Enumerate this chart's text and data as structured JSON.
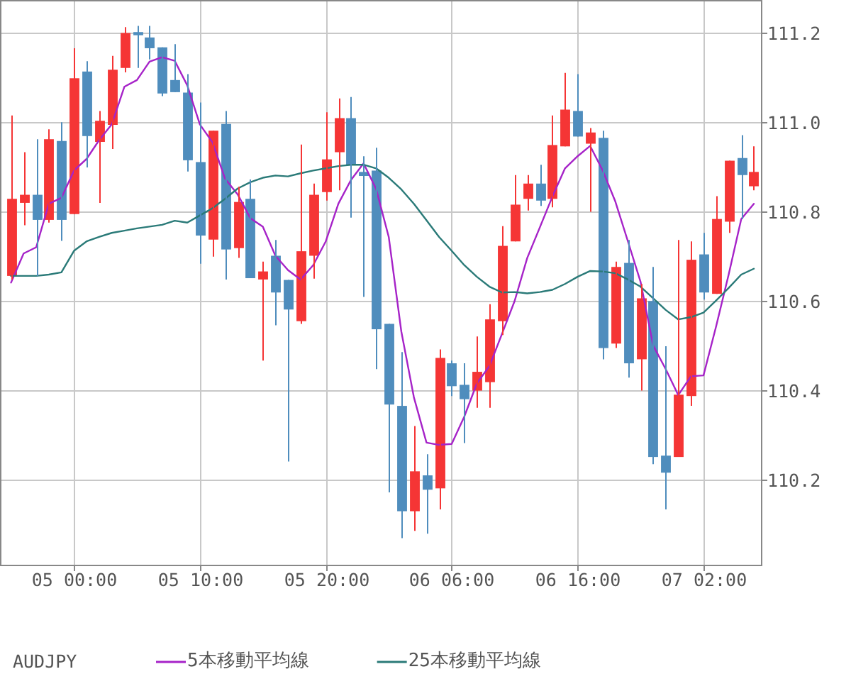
{
  "chart_data": {
    "type": "candlestick",
    "title": "AUDJPY",
    "categories": [
      null,
      null,
      null,
      null,
      null,
      "05 00:00",
      null,
      null,
      null,
      null,
      null,
      null,
      null,
      null,
      null,
      "05 10:00",
      null,
      null,
      null,
      null,
      null,
      null,
      null,
      null,
      null,
      "05 20:00",
      null,
      null,
      null,
      null,
      null,
      null,
      null,
      null,
      null,
      "06 06:00",
      null,
      null,
      null,
      null,
      null,
      null,
      null,
      null,
      null,
      "06 16:00",
      null,
      null,
      null,
      null,
      null,
      null,
      null,
      null,
      null,
      "07 02:00",
      null,
      null,
      null,
      null
    ],
    "ohlc": [
      [
        110.656,
        111.014,
        110.648,
        110.828
      ],
      [
        110.819,
        110.932,
        110.769,
        110.837
      ],
      [
        110.837,
        110.961,
        110.656,
        110.781
      ],
      [
        110.781,
        110.983,
        110.775,
        110.961
      ],
      [
        110.957,
        110.999,
        110.734,
        110.781
      ],
      [
        110.794,
        111.164,
        110.794,
        111.097
      ],
      [
        111.112,
        111.135,
        110.898,
        110.968
      ],
      [
        110.955,
        111.024,
        110.819,
        111.002
      ],
      [
        110.993,
        111.147,
        110.939,
        111.116
      ],
      [
        111.12,
        111.211,
        111.11,
        111.198
      ],
      [
        111.2,
        111.214,
        111.12,
        111.193
      ],
      [
        111.188,
        111.214,
        111.139,
        111.164
      ],
      [
        111.166,
        111.166,
        111.057,
        111.063
      ],
      [
        111.093,
        111.173,
        111.066,
        111.066
      ],
      [
        111.065,
        111.106,
        110.889,
        110.914
      ],
      [
        110.91,
        111.043,
        110.683,
        110.746
      ],
      [
        110.737,
        110.98,
        110.699,
        110.98
      ],
      [
        110.995,
        111.024,
        110.648,
        110.715
      ],
      [
        110.718,
        110.855,
        110.696,
        110.821
      ],
      [
        110.828,
        110.871,
        110.651,
        110.651
      ],
      [
        110.648,
        110.688,
        110.467,
        110.666
      ],
      [
        110.701,
        110.736,
        110.546,
        110.619
      ],
      [
        110.647,
        110.647,
        110.242,
        110.581
      ],
      [
        110.555,
        110.949,
        110.549,
        110.711
      ],
      [
        110.701,
        110.862,
        110.65,
        110.837
      ],
      [
        110.843,
        111.021,
        110.824,
        110.916
      ],
      [
        110.932,
        111.052,
        110.847,
        111.008
      ],
      [
        111.008,
        111.055,
        110.786,
        110.904
      ],
      [
        110.888,
        110.923,
        110.609,
        110.879
      ],
      [
        110.891,
        110.942,
        110.448,
        110.537
      ],
      [
        110.549,
        110.549,
        110.173,
        110.369
      ],
      [
        110.366,
        110.486,
        110.071,
        110.131
      ],
      [
        110.131,
        110.321,
        110.087,
        110.22
      ],
      [
        110.211,
        110.258,
        110.081,
        110.179
      ],
      [
        110.182,
        110.492,
        110.135,
        110.473
      ],
      [
        110.461,
        110.467,
        110.388,
        110.41
      ],
      [
        110.413,
        110.461,
        110.283,
        110.381
      ],
      [
        110.4,
        110.521,
        110.362,
        110.442
      ],
      [
        110.419,
        110.593,
        110.362,
        110.559
      ],
      [
        110.555,
        110.767,
        110.524,
        110.723
      ],
      [
        110.733,
        110.881,
        110.733,
        110.815
      ],
      [
        110.828,
        110.881,
        110.802,
        110.862
      ],
      [
        110.862,
        110.904,
        110.812,
        110.824
      ],
      [
        110.828,
        111.014,
        110.809,
        110.948
      ],
      [
        110.945,
        111.109,
        110.945,
        111.027
      ],
      [
        111.024,
        111.106,
        110.967,
        110.967
      ],
      [
        110.951,
        110.986,
        110.799,
        110.976
      ],
      [
        110.964,
        110.98,
        110.47,
        110.495
      ],
      [
        110.505,
        110.688,
        110.495,
        110.676
      ],
      [
        110.685,
        110.736,
        110.429,
        110.461
      ],
      [
        110.47,
        110.638,
        110.4,
        110.606
      ],
      [
        110.6,
        110.676,
        110.236,
        110.252
      ],
      [
        110.255,
        110.499,
        110.135,
        110.217
      ],
      [
        110.252,
        110.736,
        110.252,
        110.391
      ],
      [
        110.388,
        110.733,
        110.366,
        110.692
      ],
      [
        110.704,
        110.752,
        110.603,
        110.619
      ],
      [
        110.616,
        110.834,
        110.616,
        110.783
      ],
      [
        110.777,
        110.913,
        110.752,
        110.913
      ],
      [
        110.919,
        110.97,
        110.783,
        110.881
      ],
      [
        110.856,
        110.945,
        110.847,
        110.888
      ]
    ],
    "colors": [
      "#f53535",
      "#f53535",
      "#4f8dbd",
      "#f53535",
      "#4f8dbd",
      "#f53535",
      "#4f8dbd",
      "#f53535",
      "#f53535",
      "#f53535",
      "#4f8dbd",
      "#4f8dbd",
      "#4f8dbd",
      "#4f8dbd",
      "#4f8dbd",
      "#4f8dbd",
      "#f53535",
      "#4f8dbd",
      "#f53535",
      "#4f8dbd",
      "#f53535",
      "#4f8dbd",
      "#4f8dbd",
      "#f53535",
      "#f53535",
      "#f53535",
      "#f53535",
      "#4f8dbd",
      "#4f8dbd",
      "#4f8dbd",
      "#4f8dbd",
      "#4f8dbd",
      "#f53535",
      "#4f8dbd",
      "#f53535",
      "#4f8dbd",
      "#4f8dbd",
      "#f53535",
      "#f53535",
      "#f53535",
      "#f53535",
      "#f53535",
      "#4f8dbd",
      "#f53535",
      "#f53535",
      "#4f8dbd",
      "#f53535",
      "#4f8dbd",
      "#f53535",
      "#4f8dbd",
      "#f53535",
      "#4f8dbd",
      "#4f8dbd",
      "#f53535",
      "#f53535",
      "#4f8dbd",
      "#f53535",
      "#f53535",
      "#4f8dbd",
      "#f53535"
    ],
    "series": [
      {
        "name": "5本移動平均線",
        "type": "line",
        "color": "#a623c8",
        "values": [
          110.641,
          110.706,
          110.72,
          110.817,
          110.83,
          110.891,
          110.917,
          110.959,
          110.994,
          111.078,
          111.093,
          111.134,
          111.144,
          111.136,
          111.081,
          110.994,
          110.954,
          110.873,
          110.838,
          110.785,
          110.766,
          110.701,
          110.669,
          110.648,
          110.68,
          110.733,
          110.817,
          110.87,
          110.907,
          110.85,
          110.743,
          110.532,
          110.385,
          110.284,
          110.279,
          110.281,
          110.342,
          110.416,
          110.455,
          110.527,
          110.6,
          110.696,
          110.764,
          110.833,
          110.896,
          110.923,
          110.946,
          110.891,
          110.822,
          110.733,
          110.643,
          110.501,
          110.448,
          110.39,
          110.432,
          110.434,
          110.543,
          110.659,
          110.783,
          110.817
        ]
      },
      {
        "name": "25本移動平均線",
        "type": "line",
        "color": "#2a7a78",
        "values": [
          110.656,
          110.656,
          110.656,
          110.659,
          110.664,
          110.712,
          110.733,
          110.743,
          110.752,
          110.757,
          110.762,
          110.766,
          110.77,
          110.779,
          110.775,
          110.791,
          110.807,
          110.828,
          110.851,
          110.865,
          110.875,
          110.88,
          110.878,
          110.885,
          110.891,
          110.896,
          110.901,
          110.904,
          110.904,
          110.896,
          110.875,
          110.849,
          110.817,
          110.78,
          110.743,
          110.712,
          110.68,
          110.654,
          110.632,
          110.619,
          110.62,
          110.617,
          110.62,
          110.625,
          110.638,
          110.654,
          110.667,
          110.666,
          110.662,
          110.648,
          110.632,
          110.606,
          110.58,
          110.559,
          110.564,
          110.574,
          110.601,
          110.629,
          110.659,
          110.672
        ]
      }
    ],
    "ylim": [
      110.01,
      111.27
    ],
    "yticks": [
      110.2,
      110.4,
      110.6,
      110.8,
      {
        "value": 111,
        "label": "111.0"
      },
      111.2
    ],
    "grid": true,
    "legend": "bottom"
  }
}
